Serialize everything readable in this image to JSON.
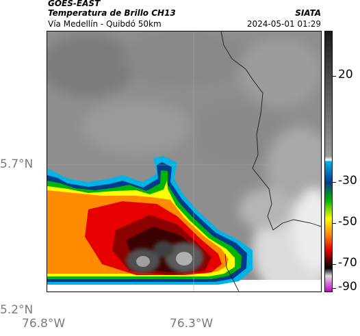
{
  "header": {
    "satellite": "GOES-EAST",
    "product": "Temperatura de Brillo CH13",
    "region": "Vía Medellín - Quibdó 50km",
    "organization": "SIATA",
    "datetime": "2024-05-01 01:29"
  },
  "map": {
    "lat_labels": [
      "5.7°N",
      "5.2°N"
    ],
    "lon_labels": [
      "76.8°W",
      "76.3°W"
    ]
  },
  "colorbar": {
    "labels": [
      "20",
      "-30",
      "-50",
      "-70",
      "-90"
    ],
    "colors": {
      "warm_top": "#1a1a1a",
      "gray_mid": "#9a9a9a",
      "cyan": "#00b4e6",
      "blue": "#003c8c",
      "green": "#00b400",
      "yellow": "#ffff00",
      "orange": "#ff8c00",
      "red": "#e60000",
      "dark_red": "#5a0000",
      "black": "#000000",
      "magenta": "#c800c8"
    }
  }
}
